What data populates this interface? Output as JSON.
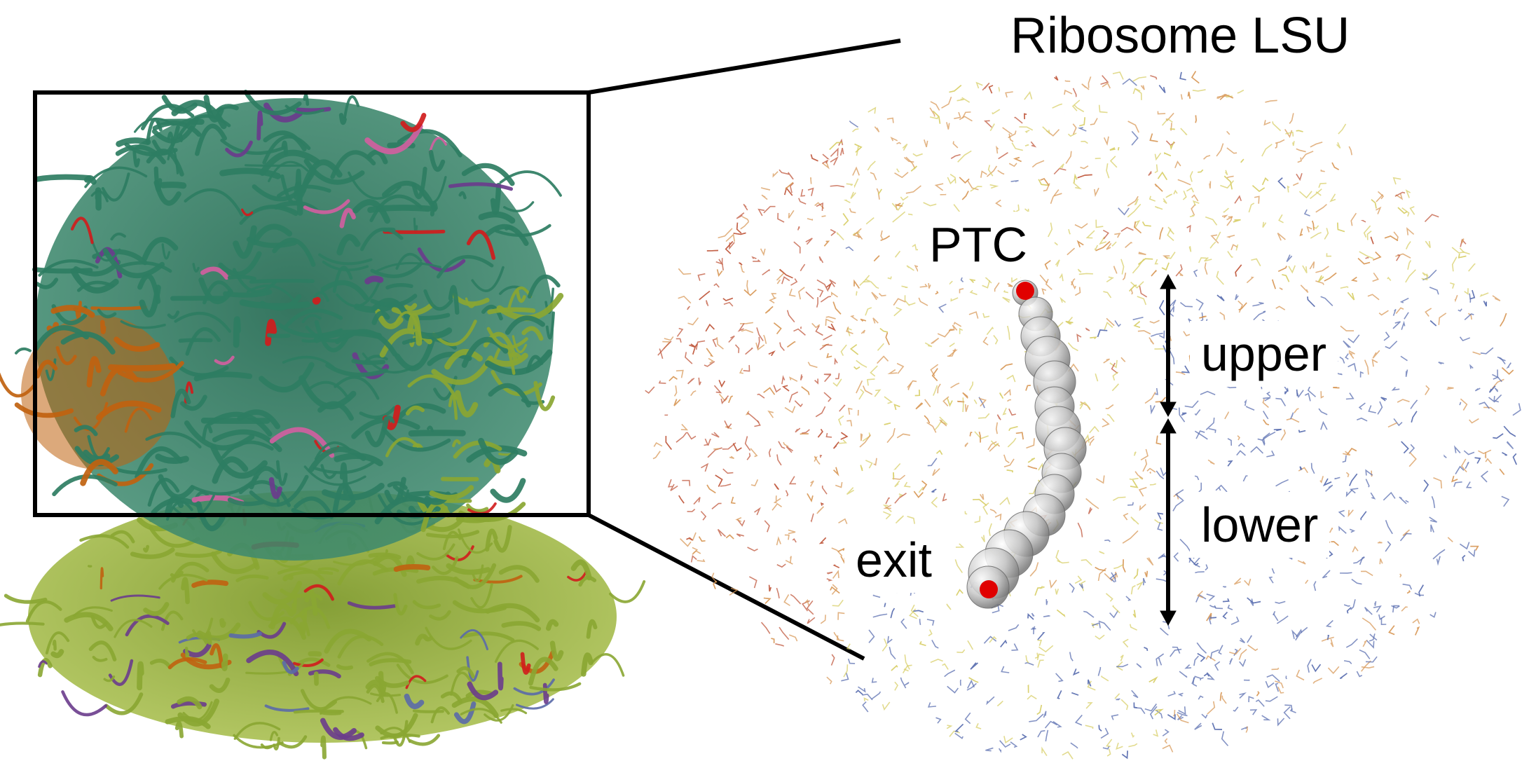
{
  "figure": {
    "title": "Ribosome LSU",
    "labels": {
      "ptc": "PTC",
      "exit": "exit",
      "upper": "upper",
      "lower": "lower"
    },
    "colors": {
      "rna_teal": "#2e7d62",
      "rna_olive": "#8aa632",
      "protein_orange": "#c0620f",
      "protein_red": "#d01c1c",
      "protein_purple": "#6a3c8c",
      "protein_pink": "#d060a0",
      "protein_blue": "#5a6aa8",
      "wire_orange": "#d89a5a",
      "wire_yellow": "#d8cf6a",
      "wire_blue": "#5b6fb0",
      "wire_red": "#c0583e",
      "tunnel_grey": "#b8b8b8",
      "marker_red": "#e00000"
    }
  }
}
